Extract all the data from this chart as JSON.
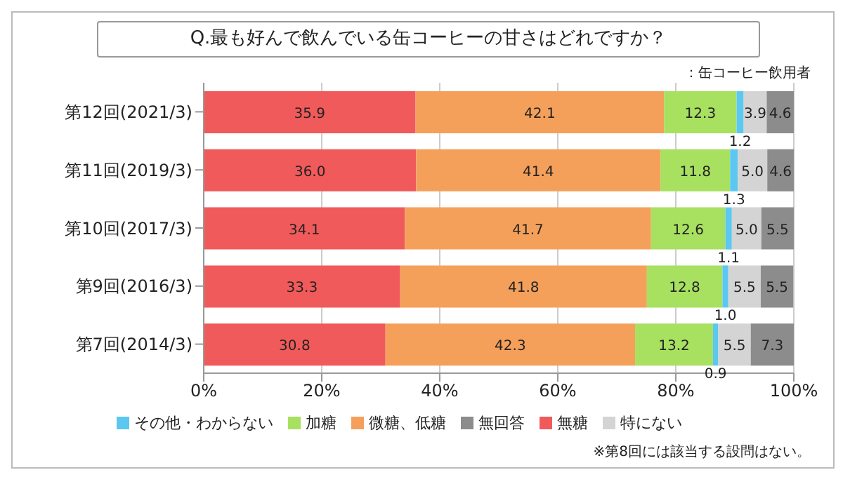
{
  "chart_data": {
    "type": "bar",
    "orientation": "horizontal",
    "stacked": true,
    "title": "Q.最も好んで飲んでいる缶コーヒーの甘さはどれですか？",
    "subtitle": "：缶コーヒー飲用者",
    "annotations": [
      "※第8回には該当する設問はない。"
    ],
    "categories": [
      "第12回(2021/3)",
      "第11回(2019/3)",
      "第10回(2017/3)",
      "第9回(2016/3)",
      "第7回(2014/3)"
    ],
    "series": [
      {
        "name": "無糖",
        "color": "#f05a5a",
        "values": [
          35.9,
          36.0,
          34.1,
          33.3,
          30.8
        ],
        "value_labels": [
          "35.9",
          "36.0",
          "34.1",
          "33.3",
          "30.8"
        ]
      },
      {
        "name": "微糖、低糖",
        "color": "#f5a05a",
        "values": [
          42.1,
          41.4,
          41.7,
          41.8,
          42.3
        ],
        "value_labels": [
          "42.1",
          "41.4",
          "41.7",
          "41.8",
          "42.3"
        ]
      },
      {
        "name": "加糖",
        "color": "#a8e060",
        "values": [
          12.3,
          11.8,
          12.6,
          12.8,
          13.2
        ],
        "value_labels": [
          "12.3",
          "11.8",
          "12.6",
          "12.8",
          "13.2"
        ]
      },
      {
        "name": "その他・わからない",
        "color": "#5cc8f0",
        "values": [
          1.2,
          1.3,
          1.1,
          1.0,
          0.9
        ],
        "value_labels": [
          "1.2",
          "1.3",
          "1.1",
          "1.0",
          "0.9"
        ]
      },
      {
        "name": "特にない",
        "color": "#d4d4d4",
        "values": [
          3.9,
          5.0,
          5.0,
          5.5,
          5.5
        ],
        "value_labels": [
          "3.9",
          "5.0",
          "5.0",
          "5.5",
          "5.5"
        ]
      },
      {
        "name": "無回答",
        "color": "#8c8c8c",
        "values": [
          4.6,
          4.6,
          5.5,
          5.5,
          7.3
        ],
        "value_labels": [
          "4.6",
          "4.6",
          "5.5",
          "5.5",
          "7.3"
        ]
      }
    ],
    "xlim": [
      0,
      100
    ],
    "xticks": [
      {
        "value": 0,
        "label": "0%"
      },
      {
        "value": 20,
        "label": "20%"
      },
      {
        "value": 40,
        "label": "40%"
      },
      {
        "value": 60,
        "label": "60%"
      },
      {
        "value": 80,
        "label": "80%"
      },
      {
        "value": 100,
        "label": "100%"
      }
    ],
    "grid": "x",
    "legend": "bottom"
  }
}
